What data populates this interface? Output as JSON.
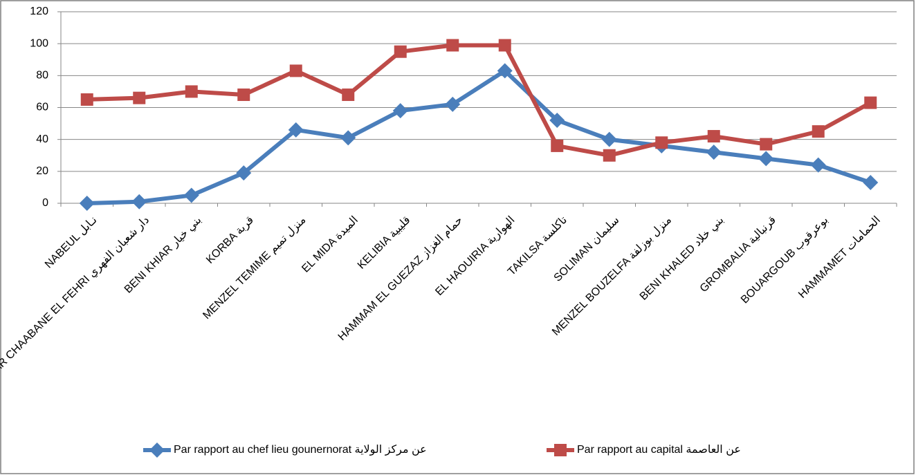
{
  "chart_data": {
    "type": "line",
    "categories": [
      "NABEUL  نـابل",
      "DAR CHAABANE EL FEHRI  دار شعبان الفهري",
      "BENI KHIAR  بني خيار",
      "KORBA   قربة",
      "MENZEL TEMIME  منزل تميم",
      "EL MIDA  الميدة",
      "KELIBIA   قليبية",
      "HAMMAM EL GUEZAZ  حمام الغزاز",
      "EL HAOUIRIA  الهوارية",
      "TAKILSA  تاكلسة",
      "SOLIMAN  سليمان",
      "MENZEL BOUZELFA  منزل بوزلفة",
      "BENI KHALED  بني خلاد",
      "GROMBALIA  قرنبالية",
      "BOUARGOUB  بوعرقوب",
      "HAMMAMET  الحمامات"
    ],
    "series": [
      {
        "name": "Par rapport au chef lieu gounernorat  عن مركز الولاية",
        "color": "#4a7ebb",
        "marker": "diamond",
        "values": [
          0,
          1,
          5,
          19,
          46,
          41,
          58,
          62,
          83,
          52,
          40,
          36,
          32,
          28,
          24,
          13
        ]
      },
      {
        "name": "Par rapport au capital عن العاصمة",
        "color": "#be4b48",
        "marker": "square",
        "values": [
          65,
          66,
          70,
          68,
          83,
          68,
          95,
          99,
          99,
          36,
          30,
          38,
          42,
          37,
          45,
          63
        ]
      }
    ],
    "ylim": [
      0,
      120
    ],
    "yticks": [
      0,
      20,
      40,
      60,
      80,
      100,
      120
    ],
    "grid": true,
    "legend": "bottom"
  }
}
